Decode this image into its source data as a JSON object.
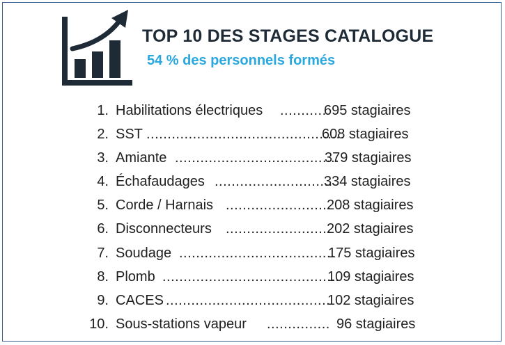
{
  "header": {
    "title": "TOP 10 DES STAGES CATALOGUE",
    "subtitle": "54 % des personnels formés"
  },
  "colors": {
    "title": "#1e2a36",
    "subtitle": "#29a8e0",
    "icon": "#1e2a36",
    "border": "#3a5f8f"
  },
  "icon": "bar-chart-growth-arrow-icon",
  "ranking": [
    {
      "rank": "1.",
      "label": "Habilitations électriques",
      "leader": "...........",
      "value": "695 stagiaires"
    },
    {
      "rank": "2.",
      "label": "SST",
      "leader": "...............................................",
      "value": "608 stagiaires"
    },
    {
      "rank": "3.",
      "label": "Amiante",
      "leader": ".......................................",
      "value": "379 stagiaires"
    },
    {
      "rank": "4.",
      "label": "Échafaudages",
      "leader": "............................",
      "value": "334 stagiaires"
    },
    {
      "rank": "5.",
      "label": "Corde / Harnais",
      "leader": ".........................",
      "value": "208 stagiaires"
    },
    {
      "rank": "6.",
      "label": "Disconnecteurs",
      "leader": ".........................",
      "value": "202 stagiaires"
    },
    {
      "rank": "7.",
      "label": "Soudage",
      "leader": ".....................................",
      "value": "175 stagiaires"
    },
    {
      "rank": "8.",
      "label": "Plomb",
      "leader": "..........................................",
      "value": "109 stagiaires"
    },
    {
      "rank": "9.",
      "label": "CACES",
      "leader": ".......................................",
      "value": "102 stagiaires"
    },
    {
      "rank": "10.",
      "label": "Sous-stations vapeur",
      "leader": "...............",
      "value": "96 stagiaires"
    }
  ]
}
